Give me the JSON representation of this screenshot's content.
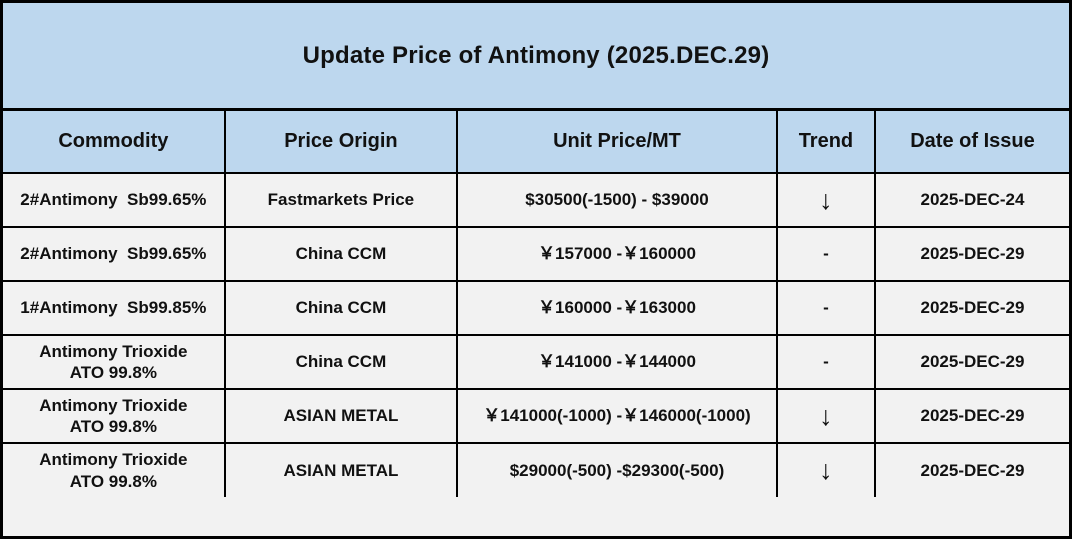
{
  "title": "Update Price of Antimony (2025.DEC.29)",
  "colors": {
    "header_bg": "#BDD7EE",
    "row_bg": "#F2F2F2",
    "border": "#000000",
    "text": "#111111"
  },
  "icons": {
    "down_trend": "↓",
    "flat_trend": "-"
  },
  "table": {
    "columns": [
      {
        "key": "commodity",
        "label": "Commodity",
        "width": "20.8%"
      },
      {
        "key": "origin",
        "label": "Price Origin",
        "width": "21.8%"
      },
      {
        "key": "price",
        "label": "Unit Price/MT",
        "width": "30.0%"
      },
      {
        "key": "trend",
        "label": "Trend",
        "width": "9.2%"
      },
      {
        "key": "date",
        "label": "Date of Issue",
        "width": "18.2%"
      }
    ],
    "rows": [
      {
        "commodity": "2#Antimony  Sb99.65%",
        "origin": "Fastmarkets Price",
        "price": "$30500(-1500) - $39000",
        "trend": "↓",
        "date": "2025-DEC-24"
      },
      {
        "commodity": "2#Antimony  Sb99.65%",
        "origin": "China CCM",
        "price": "￥157000 -￥160000",
        "trend": "-",
        "date": "2025-DEC-29"
      },
      {
        "commodity": "1#Antimony  Sb99.85%",
        "origin": "China CCM",
        "price": "￥160000 -￥163000",
        "trend": "-",
        "date": "2025-DEC-29"
      },
      {
        "commodity": "Antimony Trioxide\nATO 99.8%",
        "origin": "China CCM",
        "price": "￥141000 -￥144000",
        "trend": "-",
        "date": "2025-DEC-29"
      },
      {
        "commodity": "Antimony Trioxide\nATO 99.8%",
        "origin": "ASIAN METAL",
        "price": "￥141000(-1000) -￥146000(-1000)",
        "trend": "↓",
        "date": "2025-DEC-29"
      },
      {
        "commodity": "Antimony Trioxide\nATO 99.8%",
        "origin": "ASIAN METAL",
        "price": "$29000(-500) -$29300(-500)",
        "trend": "↓",
        "date": "2025-DEC-29"
      }
    ]
  }
}
